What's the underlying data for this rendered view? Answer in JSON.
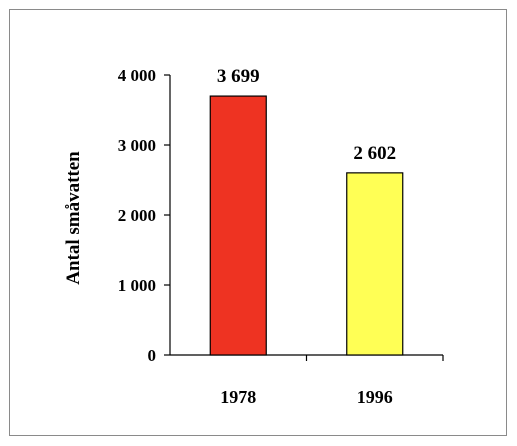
{
  "chart_data": {
    "type": "bar",
    "title": "",
    "xlabel": "",
    "ylabel": "Antal småvatten",
    "categories": [
      "1978",
      "1996"
    ],
    "values": [
      3699,
      2602
    ],
    "data_labels": [
      "3 699",
      "2 602"
    ],
    "yticks": [
      0,
      1000,
      2000,
      3000,
      4000
    ],
    "ytick_labels": [
      "0",
      "1 000",
      "2 000",
      "3 000",
      "4 000"
    ],
    "ylim": [
      0,
      4000
    ],
    "grid": false,
    "legend": "none",
    "bar_colors": [
      "#ee3322",
      "#ffff55"
    ],
    "bar_edge_color": "#000000"
  }
}
